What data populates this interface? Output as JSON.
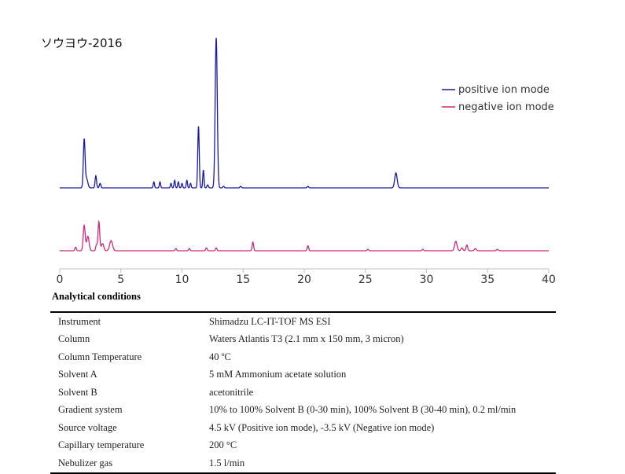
{
  "chart_data": {
    "type": "line",
    "title": "ソウヨウ-2016",
    "xlabel": "",
    "ylabel": "",
    "xlim": [
      0,
      40
    ],
    "x_ticks": [
      "0",
      "5",
      "10",
      "15",
      "20",
      "25",
      "30",
      "35",
      "40"
    ],
    "legend_position": "top-right",
    "grid": false,
    "series": [
      {
        "name": "positive ion mode",
        "color": "#1a1aa8",
        "peaks": [
          {
            "x": 2.0,
            "h": 0.32,
            "w": 0.07
          },
          {
            "x": 2.2,
            "h": 0.06,
            "w": 0.1
          },
          {
            "x": 2.95,
            "h": 0.08,
            "w": 0.06
          },
          {
            "x": 3.3,
            "h": 0.03,
            "w": 0.06
          },
          {
            "x": 7.7,
            "h": 0.04,
            "w": 0.05
          },
          {
            "x": 8.2,
            "h": 0.04,
            "w": 0.05
          },
          {
            "x": 9.1,
            "h": 0.03,
            "w": 0.05
          },
          {
            "x": 9.4,
            "h": 0.05,
            "w": 0.05
          },
          {
            "x": 9.7,
            "h": 0.04,
            "w": 0.05
          },
          {
            "x": 10.0,
            "h": 0.03,
            "w": 0.05
          },
          {
            "x": 10.4,
            "h": 0.05,
            "w": 0.05
          },
          {
            "x": 10.7,
            "h": 0.03,
            "w": 0.05
          },
          {
            "x": 11.35,
            "h": 0.41,
            "w": 0.06
          },
          {
            "x": 11.75,
            "h": 0.12,
            "w": 0.05
          },
          {
            "x": 12.1,
            "h": 0.02,
            "w": 0.06
          },
          {
            "x": 12.8,
            "h": 1.0,
            "w": 0.085
          },
          {
            "x": 13.4,
            "h": 0.01,
            "w": 0.06
          },
          {
            "x": 14.8,
            "h": 0.01,
            "w": 0.06
          },
          {
            "x": 20.3,
            "h": 0.01,
            "w": 0.06
          },
          {
            "x": 27.5,
            "h": 0.1,
            "w": 0.1
          }
        ]
      },
      {
        "name": "negative ion mode",
        "color": "#cc2a7c",
        "peaks": [
          {
            "x": 1.3,
            "h": 0.05,
            "w": 0.06
          },
          {
            "x": 2.0,
            "h": 0.35,
            "w": 0.08
          },
          {
            "x": 2.3,
            "h": 0.2,
            "w": 0.1
          },
          {
            "x": 3.0,
            "h": 0.08,
            "w": 0.06
          },
          {
            "x": 3.2,
            "h": 0.4,
            "w": 0.07
          },
          {
            "x": 3.5,
            "h": 0.1,
            "w": 0.1
          },
          {
            "x": 4.2,
            "h": 0.14,
            "w": 0.12
          },
          {
            "x": 9.5,
            "h": 0.03,
            "w": 0.06
          },
          {
            "x": 10.6,
            "h": 0.03,
            "w": 0.06
          },
          {
            "x": 12.0,
            "h": 0.04,
            "w": 0.06
          },
          {
            "x": 12.8,
            "h": 0.04,
            "w": 0.06
          },
          {
            "x": 15.8,
            "h": 0.12,
            "w": 0.06
          },
          {
            "x": 20.3,
            "h": 0.07,
            "w": 0.06
          },
          {
            "x": 25.2,
            "h": 0.02,
            "w": 0.06
          },
          {
            "x": 29.7,
            "h": 0.02,
            "w": 0.06
          },
          {
            "x": 32.4,
            "h": 0.13,
            "w": 0.1
          },
          {
            "x": 32.9,
            "h": 0.04,
            "w": 0.08
          },
          {
            "x": 33.3,
            "h": 0.08,
            "w": 0.07
          },
          {
            "x": 34.0,
            "h": 0.03,
            "w": 0.08
          },
          {
            "x": 35.8,
            "h": 0.02,
            "w": 0.08
          }
        ]
      }
    ]
  },
  "conditions": {
    "heading": "Analytical conditions",
    "rows": [
      {
        "param": "Instrument",
        "value": "Shimadzu LC-IT-TOF MS ESI"
      },
      {
        "param": "Column",
        "value": "Waters Atlantis T3 (2.1 mm x 150 mm, 3 micron)"
      },
      {
        "param": "Column Temperature",
        "value": "40 ºC"
      },
      {
        "param": "Solvent A",
        "value": "5 mM Ammonium acetate solution"
      },
      {
        "param": "Solvent B",
        "value": "acetonitrile"
      },
      {
        "param": "Gradient system",
        "value": "10% to 100% Solvent B (0-30 min), 100% Solvent B (30-40 min), 0.2 ml/min"
      },
      {
        "param": "Source voltage",
        "value": "4.5 kV (Positive ion mode), -3.5 kV (Negative ion mode)"
      },
      {
        "param": "Capillary temperature",
        "value": "200 °C"
      },
      {
        "param": "Nebulizer gas",
        "value": "1.5 l/min"
      }
    ]
  }
}
